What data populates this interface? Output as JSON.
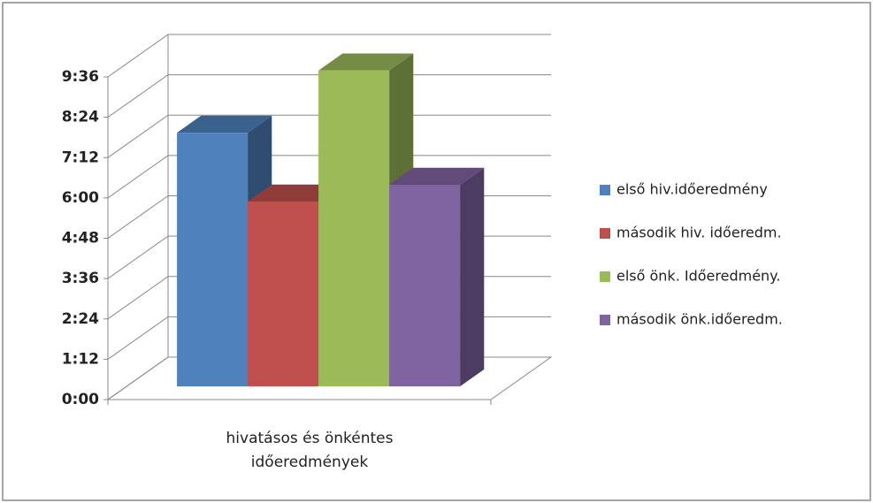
{
  "chart_data": {
    "type": "bar3d",
    "categories": [
      "hivatásos és önkéntes időeredmények"
    ],
    "series": [
      {
        "name": "első hiv.időeredmény",
        "color": "#4f81bd",
        "values": [
          7.55
        ]
      },
      {
        "name": "második hiv. időeredm.",
        "color": "#c0504d",
        "values": [
          5.5
        ]
      },
      {
        "name": "első önk. Időeredmény.",
        "color": "#9bbb59",
        "values": [
          9.4
        ]
      },
      {
        "name": "második önk.időeredm.",
        "color": "#8064a2",
        "values": [
          6.0
        ]
      }
    ],
    "ylim": [
      0,
      9.6
    ],
    "yticks": [
      {
        "value": 0,
        "label": "0:00"
      },
      {
        "value": 1.2,
        "label": "1:12"
      },
      {
        "value": 2.4,
        "label": "2:24"
      },
      {
        "value": 3.6,
        "label": "3:36"
      },
      {
        "value": 4.8,
        "label": "4:48"
      },
      {
        "value": 6,
        "label": "6:00"
      },
      {
        "value": 7.2,
        "label": "7:12"
      },
      {
        "value": 8.4,
        "label": "8:24"
      },
      {
        "value": 9.6,
        "label": "9:36"
      }
    ],
    "grid": true,
    "legend": "right"
  }
}
